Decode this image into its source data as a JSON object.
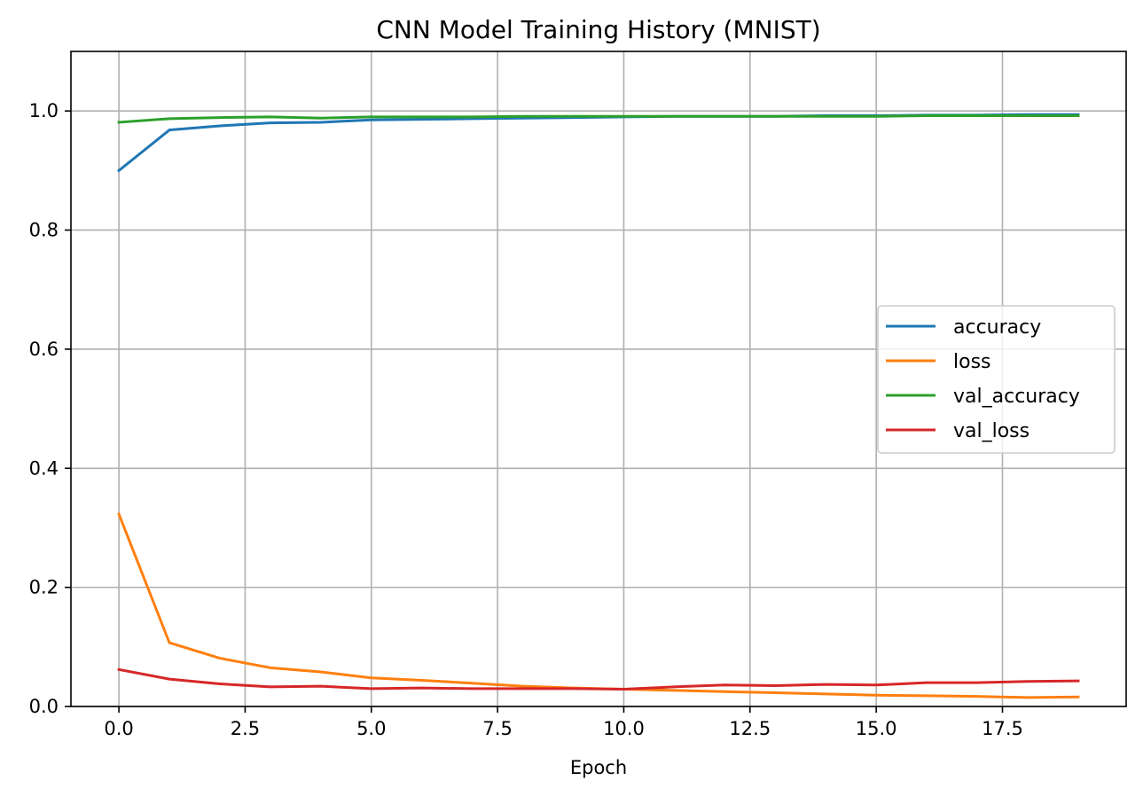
{
  "chart_data": {
    "type": "line",
    "title": "CNN Model Training History (MNIST)",
    "xlabel": "Epoch",
    "ylabel": "",
    "xlim": [
      -0.95,
      19.95
    ],
    "ylim": [
      0,
      1.1
    ],
    "grid": true,
    "legend_position": "center-right",
    "xticks": [
      0,
      2.5,
      5,
      7.5,
      10,
      12.5,
      15,
      17.5
    ],
    "xtick_labels": [
      "0.0",
      "2.5",
      "5.0",
      "7.5",
      "10.0",
      "12.5",
      "15.0",
      "17.5"
    ],
    "yticks": [
      0,
      0.2,
      0.4,
      0.6,
      0.8,
      1.0
    ],
    "ytick_labels": [
      "0.0",
      "0.2",
      "0.4",
      "0.6",
      "0.8",
      "1.0"
    ],
    "x": [
      0,
      1,
      2,
      3,
      4,
      5,
      6,
      7,
      8,
      9,
      10,
      11,
      12,
      13,
      14,
      15,
      16,
      17,
      18,
      19
    ],
    "series": [
      {
        "name": "accuracy",
        "color": "#1f77b4",
        "values": [
          0.9,
          0.968,
          0.975,
          0.98,
          0.981,
          0.985,
          0.986,
          0.987,
          0.988,
          0.989,
          0.99,
          0.991,
          0.991,
          0.991,
          0.992,
          0.992,
          0.993,
          0.993,
          0.994,
          0.994
        ]
      },
      {
        "name": "loss",
        "color": "#ff7f0e",
        "values": [
          0.323,
          0.107,
          0.081,
          0.065,
          0.058,
          0.048,
          0.044,
          0.039,
          0.034,
          0.031,
          0.029,
          0.027,
          0.025,
          0.023,
          0.021,
          0.019,
          0.018,
          0.017,
          0.015,
          0.016
        ]
      },
      {
        "name": "val_accuracy",
        "color": "#2ca02c",
        "values": [
          0.981,
          0.987,
          0.989,
          0.99,
          0.988,
          0.99,
          0.99,
          0.99,
          0.991,
          0.991,
          0.991,
          0.991,
          0.991,
          0.991,
          0.991,
          0.991,
          0.992,
          0.992,
          0.992,
          0.992
        ]
      },
      {
        "name": "val_loss",
        "color": "#d62728",
        "values": [
          0.062,
          0.046,
          0.038,
          0.033,
          0.034,
          0.03,
          0.031,
          0.03,
          0.03,
          0.03,
          0.029,
          0.033,
          0.036,
          0.035,
          0.037,
          0.036,
          0.04,
          0.04,
          0.042,
          0.043
        ]
      }
    ]
  }
}
